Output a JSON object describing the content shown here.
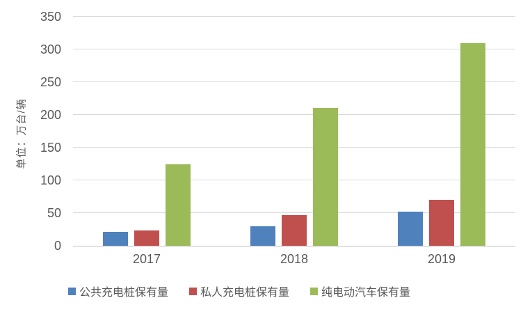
{
  "chart_data": {
    "type": "bar",
    "categories": [
      "2017",
      "2018",
      "2019"
    ],
    "series": [
      {
        "name": "公共充电桩保有量",
        "color": "#4F81BD",
        "values": [
          21,
          30,
          52
        ]
      },
      {
        "name": "私人充电桩保有量",
        "color": "#C0504D",
        "values": [
          23,
          47,
          70
        ]
      },
      {
        "name": "纯电动汽车保有量",
        "color": "#9BBB59",
        "values": [
          125,
          211,
          310
        ]
      }
    ],
    "title": "",
    "xlabel": "",
    "ylabel": "单位：万台/辆",
    "ylim": [
      0,
      350
    ],
    "yticks": [
      0,
      50,
      100,
      150,
      200,
      250,
      300,
      350
    ],
    "grid": true,
    "legend_position": "bottom"
  },
  "styles": {
    "text_color": "#595959",
    "gridline_color": "#D9D9D9",
    "axis_line_color": "#BFBFBF",
    "background": "#FFFFFF"
  }
}
